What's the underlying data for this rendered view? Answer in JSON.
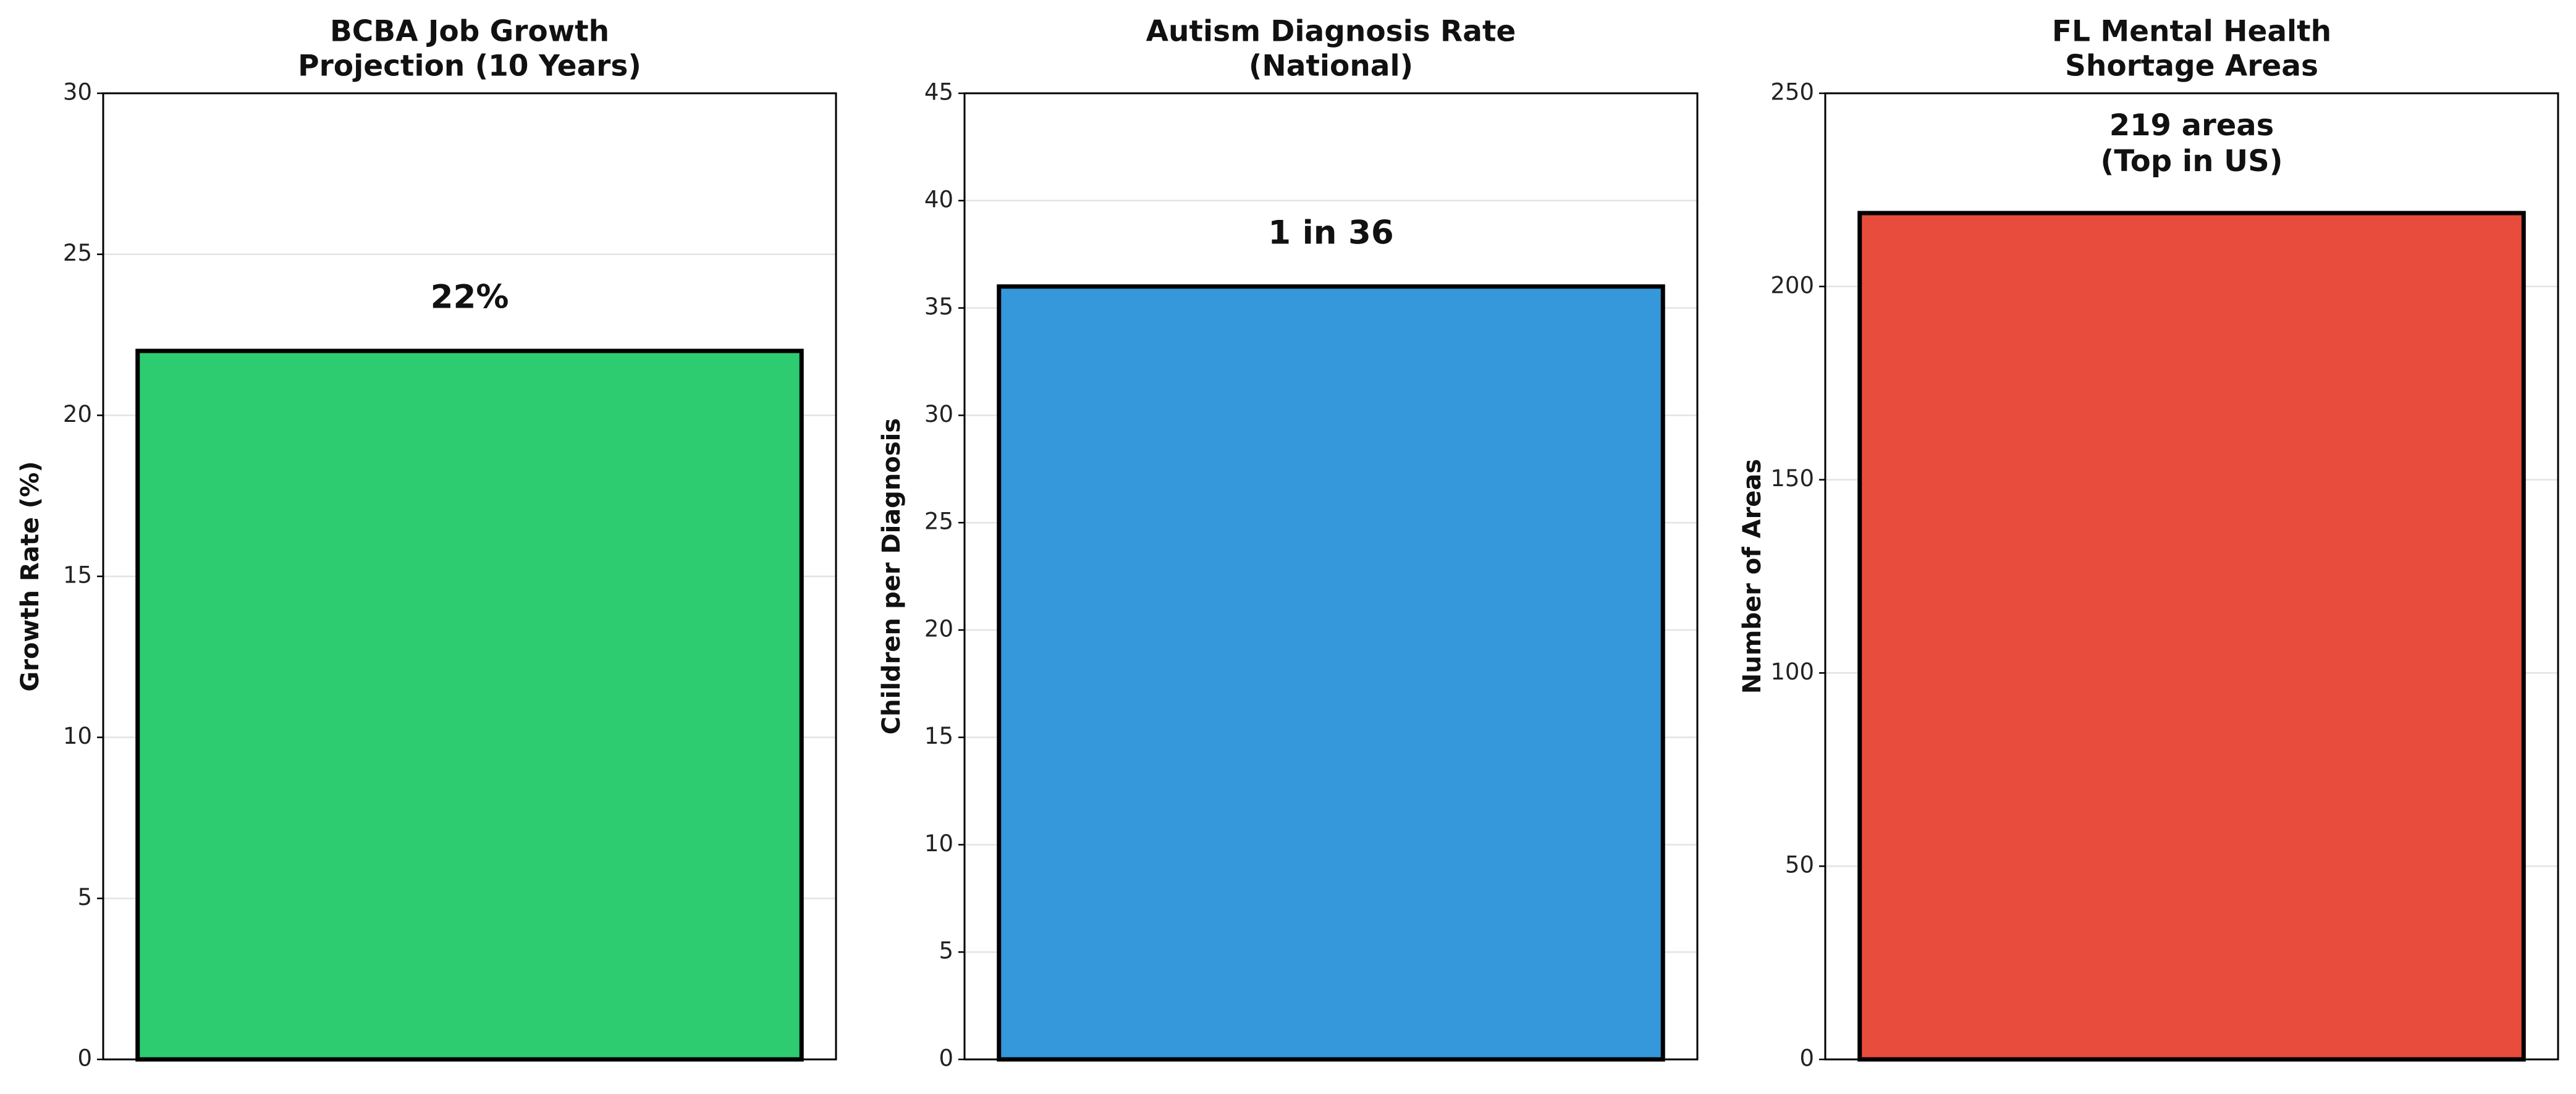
{
  "chart_data": [
    {
      "type": "bar",
      "title": "BCBA Job Growth\nProjection (10 Years)",
      "ylabel": "Growth Rate (%)",
      "categories": [
        null
      ],
      "values": [
        22
      ],
      "value_labels": [
        "22%"
      ],
      "color": "#2ecc71",
      "ylim": [
        0,
        30
      ],
      "yticks": [
        0,
        5,
        10,
        15,
        20,
        25,
        30
      ],
      "grid": true
    },
    {
      "type": "bar",
      "title": "Autism Diagnosis Rate\n(National)",
      "ylabel": "Children per Diagnosis",
      "categories": [
        null
      ],
      "values": [
        36
      ],
      "value_labels": [
        "1 in 36"
      ],
      "color": "#3498db",
      "ylim": [
        0,
        45
      ],
      "yticks": [
        0,
        5,
        10,
        15,
        20,
        25,
        30,
        35,
        40,
        45
      ],
      "grid": true
    },
    {
      "type": "bar",
      "title": "FL Mental Health\nShortage Areas",
      "ylabel": "Number of Areas",
      "categories": [
        null
      ],
      "values": [
        219
      ],
      "value_labels": [
        "219 areas\n(Top in US)"
      ],
      "color": "#e74c3c",
      "ylim": [
        0,
        250
      ],
      "yticks": [
        0,
        50,
        100,
        150,
        200,
        250
      ],
      "grid": true
    }
  ]
}
